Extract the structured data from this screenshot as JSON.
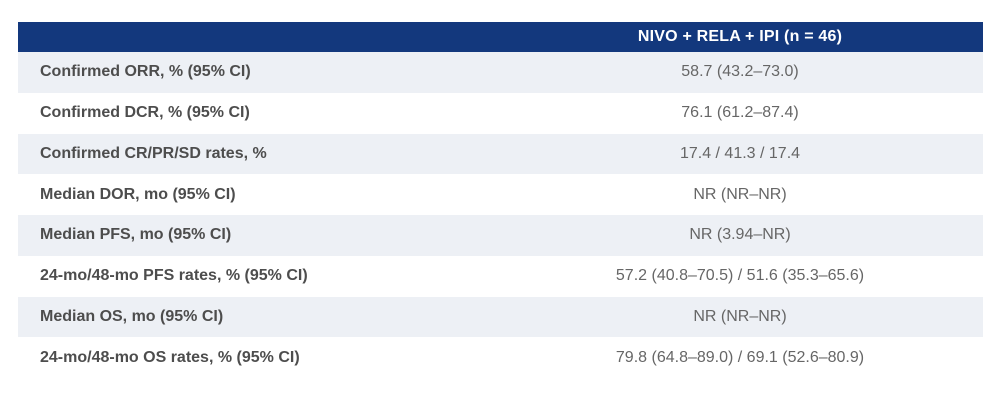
{
  "table": {
    "header": {
      "label_column": "",
      "value_column": "NIVO + RELA + IPI (n = 46)"
    },
    "rows": [
      {
        "label": "Confirmed ORR, % (95% CI)",
        "value": "58.7 (43.2–73.0)"
      },
      {
        "label": "Confirmed DCR, % (95% CI)",
        "value": "76.1 (61.2–87.4)"
      },
      {
        "label": "Confirmed CR/PR/SD rates, %",
        "value": "17.4 / 41.3 / 17.4"
      },
      {
        "label": "Median DOR, mo (95% CI)",
        "value": "NR (NR–NR)"
      },
      {
        "label": "Median PFS, mo (95% CI)",
        "value": "NR (3.94–NR)"
      },
      {
        "label": "24-mo/48-mo PFS rates, % (95% CI)",
        "value": "57.2 (40.8–70.5) / 51.6 (35.3–65.6)"
      },
      {
        "label": "Median OS, mo (95% CI)",
        "value": "NR (NR–NR)"
      },
      {
        "label": "24-mo/48-mo OS rates, % (95% CI)",
        "value": "79.8 (64.8–89.0) / 69.1 (52.6–80.9)"
      }
    ]
  },
  "colors": {
    "header_bg": "#13387d",
    "header_text": "#ffffff",
    "stripe_bg": "#edf0f5",
    "label_text": "#4d4d4d",
    "value_text": "#666666"
  },
  "chart_data": {
    "type": "table",
    "columns": [
      "",
      "NIVO + RELA + IPI (n = 46)"
    ],
    "rows": [
      [
        "Confirmed ORR, % (95% CI)",
        "58.7 (43.2–73.0)"
      ],
      [
        "Confirmed DCR, % (95% CI)",
        "76.1 (61.2–87.4)"
      ],
      [
        "Confirmed CR/PR/SD rates, %",
        "17.4 / 41.3 / 17.4"
      ],
      [
        "Median DOR, mo (95% CI)",
        "NR (NR–NR)"
      ],
      [
        "Median PFS, mo (95% CI)",
        "NR (3.94–NR)"
      ],
      [
        "24-mo/48-mo PFS rates, % (95% CI)",
        "57.2 (40.8–70.5) / 51.6 (35.3–65.6)"
      ],
      [
        "Median OS, mo (95% CI)",
        "NR (NR–NR)"
      ],
      [
        "24-mo/48-mo OS rates, % (95% CI)",
        "79.8 (64.8–89.0) / 69.1 (52.6–80.9)"
      ]
    ]
  }
}
